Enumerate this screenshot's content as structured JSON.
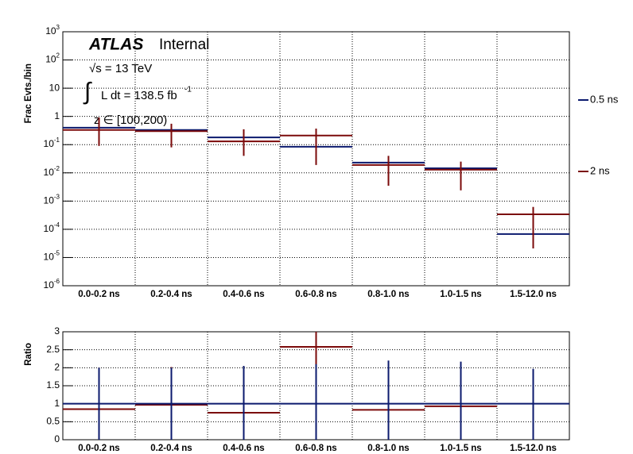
{
  "chart_data": [
    {
      "type": "step",
      "y_label": "Frac Evts./bin",
      "log_y": true,
      "grid": true,
      "legend": "right",
      "ylim": [
        1e-06,
        1000
      ],
      "yticks": [
        {
          "value": 1e-06,
          "label": "10",
          "sup": "-6"
        },
        {
          "value": 1e-05,
          "label": "10",
          "sup": "-5"
        },
        {
          "value": 0.0001,
          "label": "10",
          "sup": "-4"
        },
        {
          "value": 0.001,
          "label": "10",
          "sup": "-3"
        },
        {
          "value": 0.01,
          "label": "10",
          "sup": "-2"
        },
        {
          "value": 0.1,
          "label": "10",
          "sup": "-1"
        },
        1,
        10,
        {
          "value": 100,
          "label": "10",
          "sup": "2"
        },
        {
          "value": 1000,
          "label": "10",
          "sup": "3"
        }
      ],
      "annotations": [
        "ATLAS",
        "Internal",
        "√s = 13 TeV",
        "∫",
        "L dt = 138.5 fb",
        "-1",
        "z ∈ [100,200)"
      ],
      "categories": [
        "0.0-0.2 ns",
        "0.2-0.4 ns",
        "0.4-0.6 ns",
        "0.6-0.8 ns",
        "0.8-1.0 ns",
        "1.0-1.5 ns",
        "1.5-12.0 ns"
      ],
      "series": [
        {
          "name": "0.5 ns",
          "color": "#0b1a6e",
          "values": [
            0.4,
            0.33,
            0.18,
            0.084,
            0.023,
            0.0145,
            6.8e-05
          ]
        },
        {
          "name": "2 ns",
          "color": "#7b0a0a",
          "values": [
            0.33,
            0.3,
            0.13,
            0.21,
            0.019,
            0.013,
            0.00034
          ],
          "err_low": [
            0.09,
            0.08,
            0.04,
            0.019,
            0.0035,
            0.0024,
            2.1e-05
          ],
          "err_high": [
            0.92,
            0.55,
            0.35,
            0.37,
            0.04,
            0.025,
            0.00062
          ]
        }
      ]
    },
    {
      "type": "step",
      "y_label": "Ratio",
      "grid": true,
      "ylim": [
        0,
        3
      ],
      "yticks": [
        0,
        0.5,
        1,
        1.5,
        2,
        2.5,
        3
      ],
      "categories": [
        "0.0-0.2 ns",
        "0.2-0.4 ns",
        "0.4-0.6 ns",
        "0.6-0.8 ns",
        "0.8-1.0 ns",
        "1.0-1.5 ns",
        "1.5-12.0 ns"
      ],
      "series": [
        {
          "color": "#7b0a0a",
          "values": [
            0.85,
            0.97,
            0.75,
            2.58,
            0.83,
            0.93,
            null
          ],
          "err_low": [
            0,
            0,
            0,
            0,
            0,
            0,
            null
          ],
          "err_high": [
            2.0,
            2.02,
            2.05,
            3,
            2.0,
            2.0,
            null
          ]
        },
        {
          "color": "#0b1a6e",
          "values": [
            1,
            1,
            1,
            1,
            1,
            1,
            1
          ],
          "err_low": [
            0,
            0,
            0,
            0,
            0,
            0,
            0
          ],
          "err_high": [
            2.0,
            2.0,
            2.05,
            2.1,
            2.2,
            2.17,
            1.97
          ]
        }
      ]
    }
  ]
}
